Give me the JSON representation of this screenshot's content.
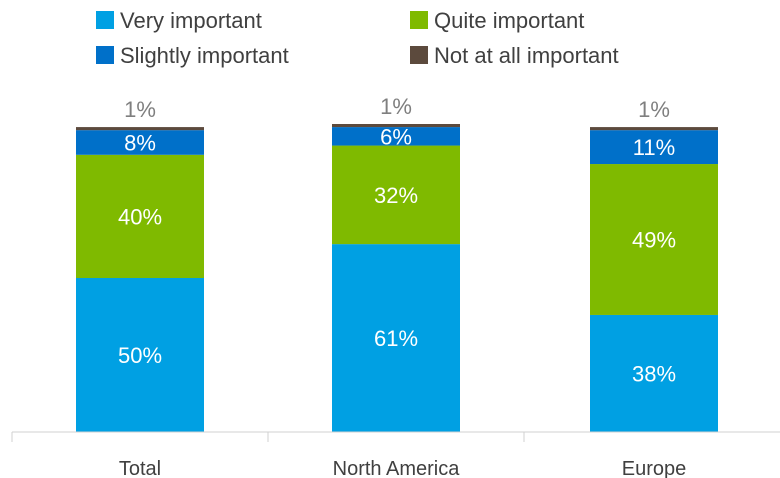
{
  "chart_data": {
    "type": "stacked-bar",
    "categories": [
      "Total",
      "North America",
      "Europe"
    ],
    "series": [
      {
        "name": "Very important",
        "color": "#00a0e3",
        "values": [
          50,
          61,
          38
        ],
        "label_color": "#ffffff"
      },
      {
        "name": "Quite important",
        "color": "#7fba00",
        "values": [
          40,
          32,
          49
        ],
        "label_color": "#ffffff"
      },
      {
        "name": "Slightly important",
        "color": "#0070c9",
        "values": [
          8,
          6,
          11
        ],
        "label_color": "#ffffff"
      },
      {
        "name": "Not at all important",
        "color": "#5c4a3d",
        "values": [
          1,
          1,
          1
        ],
        "label_color": "#7f7f7f"
      }
    ],
    "value_suffix": "%",
    "ylim": [
      0,
      100
    ],
    "grid": false,
    "legend_position": "top"
  }
}
